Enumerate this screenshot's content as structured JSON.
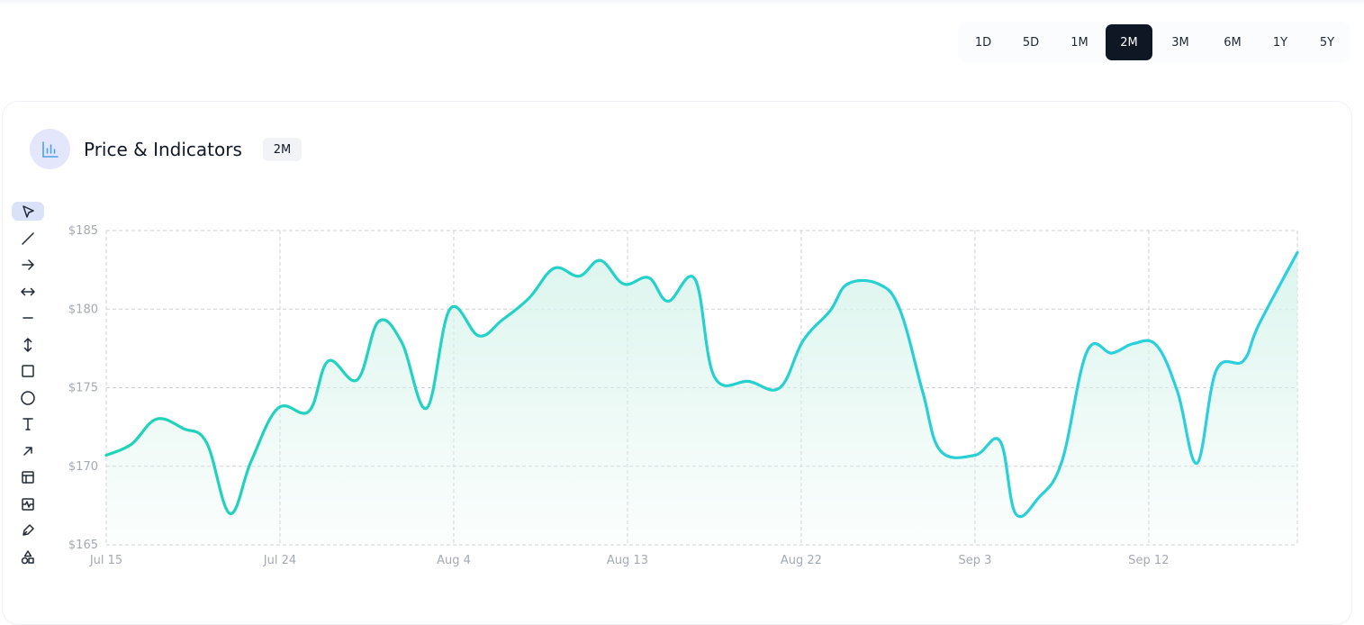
{
  "range_selector": {
    "options": [
      {
        "label": "1D"
      },
      {
        "label": "5D"
      },
      {
        "label": "1M"
      },
      {
        "label": "2M"
      },
      {
        "label": "3M"
      },
      {
        "label": "6M"
      },
      {
        "label": "1Y"
      },
      {
        "label": "5Y"
      }
    ],
    "selected": "2M"
  },
  "card": {
    "title": "Price & Indicators",
    "badge": "2M",
    "icon": "bar-chart-icon"
  },
  "toolbar": {
    "selected": "cursor-tool",
    "tools": [
      {
        "name": "cursor-tool",
        "icon": "cursor-arrow-icon"
      },
      {
        "name": "trend-line-tool",
        "icon": "diagonal-line-icon"
      },
      {
        "name": "arrow-tool",
        "icon": "arrow-right-icon"
      },
      {
        "name": "extended-line-tool",
        "icon": "double-arrow-horizontal-icon"
      },
      {
        "name": "horizontal-line-tool",
        "icon": "horizontal-line-icon"
      },
      {
        "name": "vertical-line-tool",
        "icon": "double-arrow-vertical-icon"
      },
      {
        "name": "rectangle-tool",
        "icon": "square-icon"
      },
      {
        "name": "ellipse-tool",
        "icon": "circle-icon"
      },
      {
        "name": "text-tool",
        "icon": "text-icon"
      },
      {
        "name": "ray-tool",
        "icon": "arrow-up-right-icon"
      },
      {
        "name": "layout-tool",
        "icon": "layout-icon"
      },
      {
        "name": "indicator-tool",
        "icon": "activity-icon"
      },
      {
        "name": "pen-tool",
        "icon": "pen-icon"
      },
      {
        "name": "shapes-tool",
        "icon": "shapes-icon"
      }
    ]
  },
  "colors": {
    "line": "#22d0c4",
    "fill": "#d9f4ec",
    "grid": "#cdd1d6",
    "active_range": "#0f1724",
    "active_tool": "#d9e2f8"
  },
  "chart_data": {
    "type": "area",
    "grid": true,
    "ylim": [
      165,
      185
    ],
    "y_ticks": [
      "$185",
      "$180",
      "$175",
      "$170",
      "$165"
    ],
    "y_tick_values": [
      185,
      180,
      175,
      170,
      165
    ],
    "x_ticks": [
      "Jul 15",
      "Jul 24",
      "Aug 4",
      "Aug 13",
      "Aug 22",
      "Sep 3",
      "Sep 12"
    ],
    "x_tick_positions": [
      0,
      9,
      18,
      27,
      36,
      45,
      54
    ],
    "x_max": 61.7,
    "values": [
      [
        0,
        170.7
      ],
      [
        1.3,
        171.4
      ],
      [
        2.6,
        173.0
      ],
      [
        4.0,
        172.4
      ],
      [
        5.2,
        171.5
      ],
      [
        6.4,
        167.0
      ],
      [
        7.5,
        170.3
      ],
      [
        8.9,
        173.7
      ],
      [
        10.5,
        173.5
      ],
      [
        11.5,
        176.7
      ],
      [
        13.0,
        175.5
      ],
      [
        14.1,
        179.2
      ],
      [
        15.3,
        177.9
      ],
      [
        16.6,
        173.7
      ],
      [
        17.8,
        180.0
      ],
      [
        19.3,
        178.3
      ],
      [
        20.5,
        179.3
      ],
      [
        21.9,
        180.7
      ],
      [
        23.2,
        182.6
      ],
      [
        24.5,
        182.1
      ],
      [
        25.6,
        183.1
      ],
      [
        26.8,
        181.6
      ],
      [
        28.1,
        182.0
      ],
      [
        29.1,
        180.5
      ],
      [
        30.5,
        181.9
      ],
      [
        31.5,
        175.7
      ],
      [
        33.3,
        175.4
      ],
      [
        34.9,
        175.0
      ],
      [
        36.1,
        178.0
      ],
      [
        37.5,
        179.9
      ],
      [
        38.4,
        181.6
      ],
      [
        40.0,
        181.6
      ],
      [
        41.1,
        180.0
      ],
      [
        42.3,
        174.7
      ],
      [
        43.2,
        171.0
      ],
      [
        45.0,
        170.7
      ],
      [
        46.3,
        171.6
      ],
      [
        47.1,
        167.0
      ],
      [
        48.3,
        168.0
      ],
      [
        49.5,
        170.3
      ],
      [
        50.8,
        177.3
      ],
      [
        52.1,
        177.2
      ],
      [
        53.2,
        177.8
      ],
      [
        54.4,
        177.7
      ],
      [
        55.5,
        174.7
      ],
      [
        56.5,
        170.2
      ],
      [
        57.5,
        176.1
      ],
      [
        58.9,
        176.7
      ],
      [
        59.7,
        179.0
      ],
      [
        61.7,
        183.6
      ]
    ]
  }
}
